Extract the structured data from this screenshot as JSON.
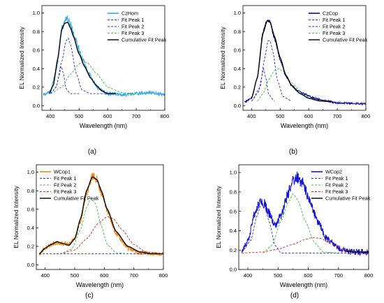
{
  "colors": {
    "axis": "#000000",
    "fit_peak_1": "#2b2bd9",
    "fit_peak_2": "#2b2bd9",
    "fit_peak_3": "#32c832",
    "fit_peak_3_red": "#e02020",
    "fit_peak_2_green": "#32c832",
    "cumulative": "#000000",
    "czhom": "#33aaee",
    "czcop": "#0a0aa8",
    "wcop1": "#f08a10",
    "wcop2": "#1414d8"
  },
  "chart_data": [
    {
      "type": "line",
      "panel_label": "(a)",
      "xlabel": "Wavelength (nm)",
      "ylabel": "EL Normalized Intensity",
      "xlim": [
        370,
        800
      ],
      "ylim": [
        -0.05,
        1.08
      ],
      "xticks": [
        400,
        500,
        600,
        700,
        800
      ],
      "yticks": [
        0.0,
        0.2,
        0.4,
        0.6,
        0.8,
        1.0
      ],
      "legend_position": "top-right",
      "series": [
        {
          "name": "CzHom",
          "style": "noisy",
          "color": "#33aaee",
          "noise": 0.03,
          "x": [
            375,
            400,
            420,
            440,
            455,
            470,
            490,
            510,
            530,
            550,
            570,
            600,
            650,
            700,
            750,
            800
          ],
          "y": [
            0.12,
            0.15,
            0.38,
            0.83,
            0.95,
            0.88,
            0.7,
            0.52,
            0.37,
            0.26,
            0.18,
            0.13,
            0.12,
            0.13,
            0.14,
            0.12
          ]
        },
        {
          "name": "Fit Peak 1",
          "style": "dashed",
          "color": "#2b2bd9",
          "x": [
            400,
            420,
            430,
            437,
            445,
            455,
            470,
            500
          ],
          "y": [
            0.13,
            0.2,
            0.32,
            0.43,
            0.35,
            0.18,
            0.13,
            0.13
          ]
        },
        {
          "name": "Fit Peak 2",
          "style": "dashed",
          "color": "#2b2bd9",
          "x": [
            400,
            420,
            440,
            455,
            462,
            470,
            490,
            510,
            540,
            600
          ],
          "y": [
            0.13,
            0.2,
            0.48,
            0.7,
            0.73,
            0.66,
            0.35,
            0.17,
            0.13,
            0.13
          ]
        },
        {
          "name": "Fit Peak 3",
          "style": "dashed",
          "color": "#32c832",
          "x": [
            400,
            440,
            470,
            500,
            515,
            530,
            560,
            600,
            650,
            700
          ],
          "y": [
            0.13,
            0.2,
            0.34,
            0.45,
            0.48,
            0.46,
            0.35,
            0.2,
            0.14,
            0.13
          ]
        },
        {
          "name": "Cumulative Fit Peak",
          "style": "solid",
          "color": "#000000",
          "x": [
            395,
            410,
            425,
            440,
            450,
            460,
            470,
            480,
            500,
            520,
            540,
            560,
            580,
            600,
            630
          ],
          "y": [
            0.13,
            0.22,
            0.5,
            0.83,
            0.89,
            0.9,
            0.84,
            0.75,
            0.56,
            0.42,
            0.3,
            0.22,
            0.16,
            0.13,
            0.13
          ]
        }
      ]
    },
    {
      "type": "line",
      "panel_label": "(b)",
      "xlabel": "Wavelength (nm)",
      "ylabel": "EL Normalized Intensity",
      "xlim": [
        370,
        800
      ],
      "ylim": [
        -0.05,
        1.08
      ],
      "xticks": [
        400,
        500,
        600,
        700,
        800
      ],
      "yticks": [
        0.0,
        0.2,
        0.4,
        0.6,
        0.8,
        1.0
      ],
      "legend_position": "top-right",
      "series": [
        {
          "name": "CzCop",
          "style": "noisy",
          "color": "#0a0aa8",
          "noise": 0.015,
          "x": [
            375,
            400,
            420,
            440,
            455,
            465,
            480,
            500,
            520,
            540,
            560,
            590,
            620,
            660,
            700,
            800
          ],
          "y": [
            0.04,
            0.08,
            0.3,
            0.8,
            0.92,
            0.9,
            0.73,
            0.5,
            0.32,
            0.22,
            0.16,
            0.12,
            0.08,
            0.05,
            0.03,
            0.02
          ]
        },
        {
          "name": "Fit Peak 1",
          "style": "dashed",
          "color": "#2b2bd9",
          "x": [
            400,
            425,
            435,
            442,
            450,
            460,
            480
          ],
          "y": [
            0.05,
            0.15,
            0.3,
            0.4,
            0.3,
            0.12,
            0.05
          ]
        },
        {
          "name": "Fit Peak 2",
          "style": "dashed",
          "color": "#2b2bd9",
          "x": [
            400,
            430,
            445,
            458,
            465,
            475,
            490,
            510,
            540
          ],
          "y": [
            0.05,
            0.2,
            0.5,
            0.7,
            0.7,
            0.58,
            0.28,
            0.1,
            0.05
          ]
        },
        {
          "name": "Fit Peak 3",
          "style": "dashed",
          "color": "#32c832",
          "x": [
            420,
            440,
            460,
            480,
            495,
            510,
            540,
            580,
            620,
            660
          ],
          "y": [
            0.05,
            0.13,
            0.28,
            0.38,
            0.4,
            0.37,
            0.25,
            0.12,
            0.06,
            0.05
          ]
        },
        {
          "name": "Cumulative Fit Peak",
          "style": "solid",
          "color": "#000000",
          "x": [
            400,
            420,
            440,
            455,
            465,
            480,
            500,
            520,
            540,
            570,
            600,
            640,
            680
          ],
          "y": [
            0.08,
            0.3,
            0.78,
            0.92,
            0.9,
            0.75,
            0.52,
            0.33,
            0.22,
            0.13,
            0.08,
            0.05,
            0.05
          ]
        }
      ]
    },
    {
      "type": "line",
      "panel_label": "(c)",
      "xlabel": "Wavelength (nm)",
      "ylabel": "EL Normalized Intensity",
      "xlim": [
        370,
        800
      ],
      "ylim": [
        -0.05,
        1.08
      ],
      "xticks": [
        400,
        500,
        600,
        700,
        800
      ],
      "yticks": [
        0.0,
        0.2,
        0.4,
        0.6,
        0.8,
        1.0
      ],
      "legend_position": "top-left",
      "series": [
        {
          "name": "WCop1",
          "style": "noisy",
          "color": "#f08a10",
          "noise": 0.035,
          "x": [
            380,
            400,
            420,
            440,
            460,
            480,
            500,
            520,
            540,
            560,
            575,
            590,
            610,
            640,
            680,
            720,
            760,
            800
          ],
          "y": [
            0.12,
            0.18,
            0.22,
            0.24,
            0.23,
            0.22,
            0.28,
            0.48,
            0.78,
            0.95,
            0.92,
            0.78,
            0.58,
            0.34,
            0.18,
            0.13,
            0.12,
            0.12
          ]
        },
        {
          "name": "Fit Peak 1",
          "style": "dashed",
          "color": "#2b2bd9",
          "x": [
            380,
            500,
            600,
            700,
            800
          ],
          "y": [
            0.12,
            0.12,
            0.12,
            0.12,
            0.12
          ]
        },
        {
          "name": "Fit Peak 2",
          "style": "dashed",
          "color": "#32c832",
          "x": [
            450,
            490,
            520,
            540,
            555,
            570,
            590,
            610,
            640,
            680
          ],
          "y": [
            0.12,
            0.17,
            0.38,
            0.62,
            0.72,
            0.66,
            0.42,
            0.22,
            0.13,
            0.12
          ]
        },
        {
          "name": "Fit Peak 3",
          "style": "dashed",
          "color": "#e02020",
          "x": [
            450,
            500,
            540,
            580,
            610,
            630,
            660,
            700,
            740,
            800
          ],
          "y": [
            0.12,
            0.16,
            0.28,
            0.45,
            0.52,
            0.5,
            0.38,
            0.22,
            0.14,
            0.12
          ]
        },
        {
          "name": "Cumulative Fit Peak",
          "style": "solid",
          "color": "#000000",
          "x": [
            380,
            400,
            420,
            440,
            460,
            480,
            500,
            520,
            540,
            560,
            575,
            590,
            610,
            640,
            680,
            720,
            760,
            800
          ],
          "y": [
            0.12,
            0.18,
            0.22,
            0.25,
            0.23,
            0.21,
            0.28,
            0.5,
            0.8,
            0.95,
            0.92,
            0.8,
            0.6,
            0.36,
            0.2,
            0.14,
            0.12,
            0.12
          ]
        }
      ]
    },
    {
      "type": "line",
      "panel_label": "(d)",
      "xlabel": "Wavelength (nm)",
      "ylabel": "EL Normalized Intensity",
      "xlim": [
        370,
        800
      ],
      "ylim": [
        0.0,
        1.08
      ],
      "xticks": [
        400,
        500,
        600,
        700,
        800
      ],
      "yticks": [
        0.0,
        0.2,
        0.4,
        0.6,
        0.8,
        1.0
      ],
      "legend_position": "top-right",
      "series": [
        {
          "name": "WCop2",
          "style": "noisy",
          "color": "#1414d8",
          "noise": 0.045,
          "x": [
            380,
            400,
            420,
            440,
            455,
            470,
            490,
            510,
            530,
            550,
            565,
            580,
            600,
            630,
            660,
            700,
            740,
            780,
            800
          ],
          "y": [
            0.18,
            0.3,
            0.55,
            0.7,
            0.68,
            0.58,
            0.45,
            0.55,
            0.75,
            0.92,
            0.95,
            0.9,
            0.75,
            0.5,
            0.32,
            0.22,
            0.18,
            0.18,
            0.18
          ]
        },
        {
          "name": "Fit Peak 1",
          "style": "dashed",
          "color": "#2b2bd9",
          "x": [
            380,
            410,
            430,
            445,
            455,
            470,
            490,
            510,
            600,
            800
          ],
          "y": [
            0.18,
            0.3,
            0.55,
            0.68,
            0.66,
            0.5,
            0.25,
            0.17,
            0.17,
            0.17
          ]
        },
        {
          "name": "Fit Peak 2",
          "style": "dashed",
          "color": "#32c832",
          "x": [
            450,
            480,
            510,
            535,
            550,
            565,
            590,
            620,
            650,
            700
          ],
          "y": [
            0.17,
            0.25,
            0.5,
            0.7,
            0.78,
            0.72,
            0.5,
            0.28,
            0.18,
            0.17
          ]
        },
        {
          "name": "Fit Peak 3",
          "style": "dashed",
          "color": "#e02020",
          "x": [
            380,
            450,
            500,
            550,
            590,
            615,
            640,
            680,
            720,
            760,
            800
          ],
          "y": [
            0.17,
            0.18,
            0.21,
            0.26,
            0.31,
            0.33,
            0.32,
            0.26,
            0.2,
            0.18,
            0.17
          ]
        },
        {
          "name": "Cumulative Fit Peak",
          "style": "solid",
          "color": "#000000",
          "x": [
            720,
            760,
            800
          ],
          "y": [
            0.19,
            0.18,
            0.18
          ]
        }
      ]
    }
  ]
}
